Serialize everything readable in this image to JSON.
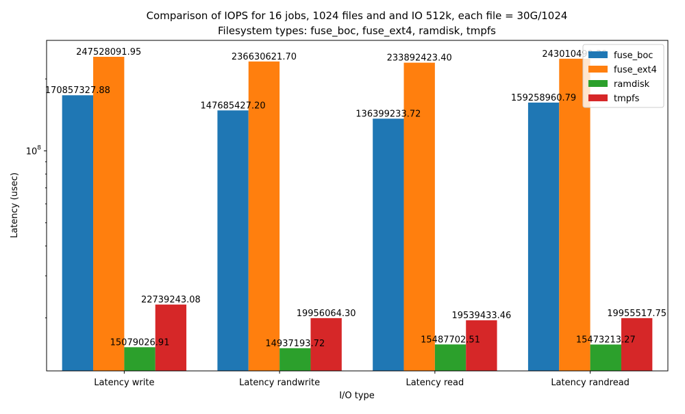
{
  "chart_data": {
    "type": "bar",
    "title": "Comparison of IOPS for 16 jobs, 1024 files and  and IO 512k, each file = 30G/1024",
    "subtitle": "Filesystem types: fuse_boc, fuse_ext4, ramdisk, tmpfs",
    "xlabel": "I/O type",
    "ylabel": "Latency (usec)",
    "yscale": "log",
    "ylim": [
      12000000,
      290000000
    ],
    "yticks": [
      {
        "value": 100000000,
        "base": "10",
        "exp": "8"
      }
    ],
    "y_minor_ticks": [
      20000000,
      30000000,
      40000000,
      50000000,
      60000000,
      70000000,
      80000000,
      90000000,
      200000000
    ],
    "grid": false,
    "legend_position": "top-right",
    "categories": [
      "Latency write",
      "Latency randwrite",
      "Latency read",
      "Latency randread"
    ],
    "series": [
      {
        "name": "fuse_boc",
        "color": "#1f77b4",
        "values": [
          170857327.88,
          147685427.2,
          136399233.72,
          159258960.79
        ],
        "labels": [
          "170857327.88",
          "147685427.20",
          "136399233.72",
          "159258960.79"
        ]
      },
      {
        "name": "fuse_ext4",
        "color": "#ff7f0e",
        "values": [
          247528091.95,
          236630621.7,
          233892423.4,
          243010499.39
        ],
        "labels": [
          "247528091.95",
          "236630621.70",
          "233892423.40",
          "243010499.39"
        ]
      },
      {
        "name": "ramdisk",
        "color": "#2ca02c",
        "values": [
          15079026.91,
          14937193.72,
          15487702.51,
          15473213.27
        ],
        "labels": [
          "15079026.91",
          "14937193.72",
          "15487702.51",
          "15473213.27"
        ]
      },
      {
        "name": "tmpfs",
        "color": "#d62728",
        "values": [
          22739243.08,
          19956064.3,
          19539433.46,
          19955517.75
        ],
        "labels": [
          "22739243.08",
          "19956064.30",
          "19539433.46",
          "19955517.75"
        ]
      }
    ]
  }
}
